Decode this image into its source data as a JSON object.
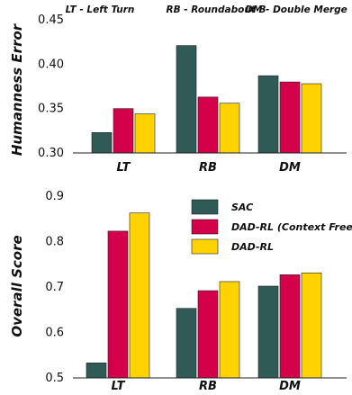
{
  "colors": {
    "sac": "#305a55",
    "dad_cf": "#d5004a",
    "dad": "#ffd200"
  },
  "legend": [
    "SAC",
    "DAD-RL (Context Free)",
    "DAD-RL"
  ],
  "chart_data": [
    {
      "type": "bar",
      "ylabel": "Humanness Error",
      "ylim": [
        0.3,
        0.45
      ],
      "yticks": [
        "0.30",
        "0.35",
        "0.40",
        "0.45"
      ],
      "categories": [
        "LT",
        "RB",
        "DM"
      ],
      "annotations": [
        "LT - Left Turn",
        "RB - Roundabout B",
        "DM - Double Merge"
      ],
      "series": [
        {
          "name": "SAC",
          "values": [
            0.323,
            0.421,
            0.387
          ]
        },
        {
          "name": "DAD-RL (Context Free)",
          "values": [
            0.35,
            0.363,
            0.38
          ]
        },
        {
          "name": "DAD-RL",
          "values": [
            0.344,
            0.356,
            0.378
          ]
        }
      ],
      "grid": false
    },
    {
      "type": "bar",
      "ylabel": "Overall Score",
      "ylim": [
        0.5,
        0.9
      ],
      "yticks": [
        "0.5",
        "0.6",
        "0.7",
        "0.8",
        "0.9"
      ],
      "categories": [
        "LT",
        "RB",
        "DM"
      ],
      "series": [
        {
          "name": "SAC",
          "values": [
            0.533,
            0.653,
            0.702
          ]
        },
        {
          "name": "DAD-RL (Context Free)",
          "values": [
            0.823,
            0.692,
            0.727
          ]
        },
        {
          "name": "DAD-RL",
          "values": [
            0.863,
            0.712,
            0.731
          ]
        }
      ],
      "legend_position": "top-right",
      "grid": false
    }
  ]
}
